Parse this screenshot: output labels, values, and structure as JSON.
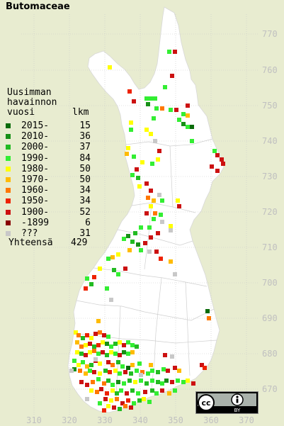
{
  "title": "Butomaceae",
  "legend": {
    "heading": [
      "Uusimman",
      "havainnon"
    ],
    "col_year": "vuosi",
    "col_count": "lkm",
    "rows": [
      {
        "label": "2015-",
        "count": "15",
        "color": "#0a6b0a"
      },
      {
        "label": "2010-",
        "count": "36",
        "color": "#168f16"
      },
      {
        "label": "2000-",
        "count": "37",
        "color": "#22bb22"
      },
      {
        "label": "1990-",
        "count": "84",
        "color": "#33ee33"
      },
      {
        "label": "1980-",
        "count": "50",
        "color": "#ffff00"
      },
      {
        "label": "1970-",
        "count": "50",
        "color": "#ffbb00"
      },
      {
        "label": "1960-",
        "count": "34",
        "color": "#ff7700"
      },
      {
        "label": "1950-",
        "count": "34",
        "color": "#ee2200"
      },
      {
        "label": "1900-",
        "count": "52",
        "color": "#cc1111"
      },
      {
        "label": "-1899",
        "count": "6",
        "color": "#880000"
      },
      {
        "label": "???",
        "count": "31",
        "color": "#c8c8c8"
      }
    ],
    "total_label": "Yhteensä",
    "total_count": "429"
  },
  "axis_x": [
    "310",
    "320",
    "330",
    "340",
    "350",
    "360",
    "370"
  ],
  "axis_y": [
    "770",
    "760",
    "750",
    "740",
    "730",
    "720",
    "710",
    "700",
    "690",
    "680",
    "670"
  ],
  "license_badge": {
    "left": "cc",
    "right_icon": "attribution-icon",
    "right_text": "BY"
  },
  "colors": {
    "background": "#e8ecd0",
    "land": "#ffffff",
    "grid": "#c8c8c8",
    "axis_text": "#c0c0c0"
  }
}
